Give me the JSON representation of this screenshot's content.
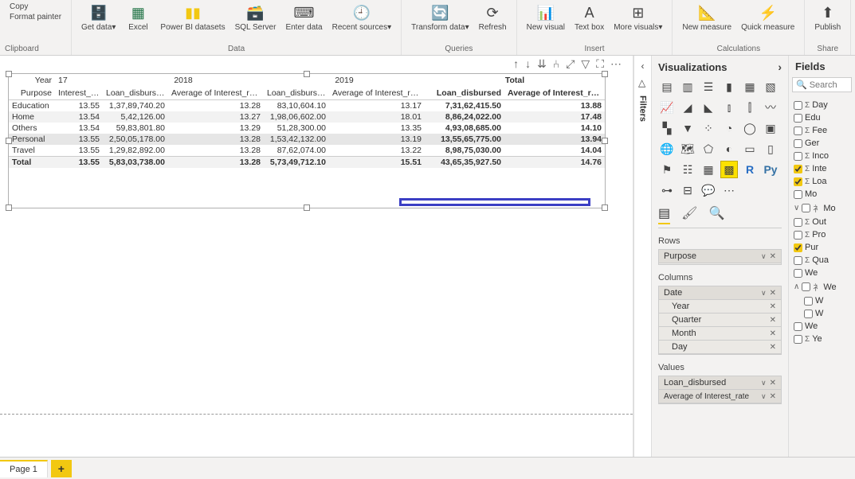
{
  "ribbon": {
    "clipboard": {
      "copy": "Copy",
      "format_painter": "Format painter",
      "group": "Clipboard"
    },
    "data_group": {
      "get_data": "Get data",
      "excel": "Excel",
      "powerbi": "Power BI datasets",
      "sql": "SQL Server",
      "enter": "Enter data",
      "recent": "Recent sources",
      "label": "Data"
    },
    "queries_group": {
      "transform": "Transform data",
      "refresh": "Refresh",
      "label": "Queries"
    },
    "insert_group": {
      "new_visual": "New visual",
      "text_box": "Text box",
      "more_visuals": "More visuals",
      "label": "Insert"
    },
    "calc_group": {
      "new_measure": "New measure",
      "quick_measure": "Quick measure",
      "label": "Calculations"
    },
    "share_group": {
      "publish": "Publish",
      "label": "Share"
    }
  },
  "matrix": {
    "header_year": "Year",
    "header_purpose": "Purpose",
    "years": [
      "17",
      "2018",
      "2019",
      "Total"
    ],
    "cols": {
      "interest_rate": "Interest_rate",
      "loan_disbursed": "Loan_disbursed",
      "avg_interest": "Average of Interest_rate",
      "total_loan": "Loan_disbursed",
      "total_avg": "Average of Interest_rate"
    },
    "rows": [
      {
        "purpose": "Education",
        "ir17": "13.55",
        "ld18": "1,37,89,740.20",
        "air18": "13.28",
        "ld19": "83,10,604.10",
        "air19": "13.17",
        "tld": "7,31,62,415.50",
        "tair": "13.88"
      },
      {
        "purpose": "Home",
        "ir17": "13.54",
        "ld18": "5,42,126.00",
        "air18": "13.27",
        "ld19": "1,98,06,602.00",
        "air19": "18.01",
        "tld": "8,86,24,022.00",
        "tair": "17.48"
      },
      {
        "purpose": "Others",
        "ir17": "13.54",
        "ld18": "59,83,801.80",
        "air18": "13.29",
        "ld19": "51,28,300.00",
        "air19": "13.35",
        "tld": "4,93,08,685.00",
        "tair": "14.10"
      },
      {
        "purpose": "Personal",
        "ir17": "13.55",
        "ld18": "2,50,05,178.00",
        "air18": "13.28",
        "ld19": "1,53,42,132.00",
        "air19": "13.19",
        "tld": "13,55,65,775.00",
        "tair": "13.94"
      },
      {
        "purpose": "Travel",
        "ir17": "13.55",
        "ld18": "1,29,82,892.00",
        "air18": "13.28",
        "ld19": "87,62,074.00",
        "air19": "13.22",
        "tld": "8,98,75,030.00",
        "tair": "14.04"
      }
    ],
    "total": {
      "purpose": "Total",
      "ir17": "13.55",
      "ld18": "5,83,03,738.00",
      "air18": "13.28",
      "ld19": "5,73,49,712.10",
      "air19": "15.51",
      "tld": "43,65,35,927.50",
      "tair": "14.76"
    }
  },
  "filters_label": "Filters",
  "viz": {
    "title": "Visualizations",
    "rows_label": "Rows",
    "rows_item": "Purpose",
    "cols_label": "Columns",
    "cols_item": "Date",
    "cols_sub": [
      "Year",
      "Quarter",
      "Month",
      "Day"
    ],
    "values_label": "Values",
    "values_items": [
      "Loan_disbursed",
      "Average of Interest_rate"
    ]
  },
  "fields": {
    "title": "Fields",
    "search_placeholder": "Search",
    "items": [
      {
        "label": "Day",
        "checked": false,
        "sigma": true
      },
      {
        "label": "Edu",
        "checked": false,
        "sigma": false
      },
      {
        "label": "Fee",
        "checked": false,
        "sigma": true
      },
      {
        "label": "Ger",
        "checked": false,
        "sigma": false
      },
      {
        "label": "Inco",
        "checked": false,
        "sigma": true
      },
      {
        "label": "Inte",
        "checked": true,
        "sigma": true
      },
      {
        "label": "Loa",
        "checked": true,
        "sigma": true
      },
      {
        "label": "Mo",
        "checked": false,
        "sigma": false
      },
      {
        "label": "Mo",
        "checked": false,
        "hier": true,
        "expand": "down"
      },
      {
        "label": "Out",
        "checked": false,
        "sigma": true
      },
      {
        "label": "Pro",
        "checked": false,
        "sigma": true
      },
      {
        "label": "Pur",
        "checked": true,
        "sigma": false
      },
      {
        "label": "Qua",
        "checked": false,
        "sigma": true
      },
      {
        "label": "We",
        "checked": false,
        "sigma": false
      },
      {
        "label": "We",
        "checked": false,
        "hier": true,
        "expand": "up"
      },
      {
        "label": "W",
        "checked": false,
        "sigma": false,
        "indent": true
      },
      {
        "label": "W",
        "checked": false,
        "sigma": false,
        "indent": true
      },
      {
        "label": "We",
        "checked": false,
        "sigma": false
      },
      {
        "label": "Ye",
        "checked": false,
        "sigma": true
      }
    ]
  },
  "page_tab": "Page 1"
}
